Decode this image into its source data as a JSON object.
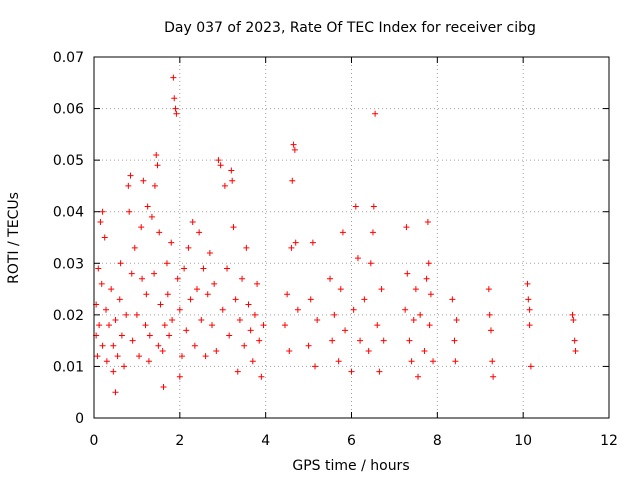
{
  "chart_data": {
    "type": "scatter",
    "title": "Day 037 of 2023, Rate Of TEC Index for receiver cibg",
    "xlabel": "GPS time / hours",
    "ylabel": "ROTI / TECUs",
    "xlim": [
      0,
      12
    ],
    "ylim": [
      0,
      0.07
    ],
    "xticks": [
      0,
      2,
      4,
      6,
      8,
      10,
      12
    ],
    "yticks": [
      0,
      0.01,
      0.02,
      0.03,
      0.04,
      0.05,
      0.06,
      0.07
    ],
    "ytick_labels": [
      "0",
      "0.01",
      "0.02",
      "0.03",
      "0.04",
      "0.05",
      "0.06",
      "0.07"
    ],
    "grid": true,
    "marker": "+",
    "color": "#ff0000",
    "series": [
      {
        "name": "ROTI",
        "points": [
          [
            0.05,
            0.016
          ],
          [
            0.05,
            0.022
          ],
          [
            0.08,
            0.012
          ],
          [
            0.1,
            0.029
          ],
          [
            0.12,
            0.018
          ],
          [
            0.15,
            0.038
          ],
          [
            0.18,
            0.026
          ],
          [
            0.2,
            0.014
          ],
          [
            0.2,
            0.04
          ],
          [
            0.25,
            0.035
          ],
          [
            0.28,
            0.021
          ],
          [
            0.3,
            0.011
          ],
          [
            0.35,
            0.018
          ],
          [
            0.4,
            0.025
          ],
          [
            0.45,
            0.009
          ],
          [
            0.45,
            0.014
          ],
          [
            0.5,
            0.005
          ],
          [
            0.5,
            0.019
          ],
          [
            0.55,
            0.012
          ],
          [
            0.6,
            0.023
          ],
          [
            0.62,
            0.03
          ],
          [
            0.65,
            0.016
          ],
          [
            0.7,
            0.01
          ],
          [
            0.75,
            0.02
          ],
          [
            0.8,
            0.045
          ],
          [
            0.82,
            0.04
          ],
          [
            0.85,
            0.047
          ],
          [
            0.88,
            0.028
          ],
          [
            0.9,
            0.015
          ],
          [
            0.95,
            0.033
          ],
          [
            1.0,
            0.02
          ],
          [
            1.05,
            0.012
          ],
          [
            1.1,
            0.037
          ],
          [
            1.12,
            0.027
          ],
          [
            1.15,
            0.046
          ],
          [
            1.2,
            0.018
          ],
          [
            1.22,
            0.024
          ],
          [
            1.25,
            0.041
          ],
          [
            1.28,
            0.011
          ],
          [
            1.3,
            0.016
          ],
          [
            1.35,
            0.039
          ],
          [
            1.4,
            0.028
          ],
          [
            1.42,
            0.045
          ],
          [
            1.45,
            0.051
          ],
          [
            1.48,
            0.049
          ],
          [
            1.5,
            0.014
          ],
          [
            1.52,
            0.036
          ],
          [
            1.55,
            0.022
          ],
          [
            1.6,
            0.013
          ],
          [
            1.62,
            0.006
          ],
          [
            1.65,
            0.018
          ],
          [
            1.7,
            0.03
          ],
          [
            1.72,
            0.024
          ],
          [
            1.75,
            0.016
          ],
          [
            1.8,
            0.034
          ],
          [
            1.82,
            0.019
          ],
          [
            1.85,
            0.066
          ],
          [
            1.87,
            0.062
          ],
          [
            1.9,
            0.06
          ],
          [
            1.92,
            0.059
          ],
          [
            1.95,
            0.027
          ],
          [
            2.0,
            0.008
          ],
          [
            2.0,
            0.021
          ],
          [
            2.05,
            0.012
          ],
          [
            2.1,
            0.029
          ],
          [
            2.15,
            0.017
          ],
          [
            2.2,
            0.033
          ],
          [
            2.25,
            0.023
          ],
          [
            2.3,
            0.038
          ],
          [
            2.35,
            0.014
          ],
          [
            2.4,
            0.025
          ],
          [
            2.45,
            0.036
          ],
          [
            2.5,
            0.019
          ],
          [
            2.55,
            0.029
          ],
          [
            2.6,
            0.012
          ],
          [
            2.65,
            0.024
          ],
          [
            2.7,
            0.032
          ],
          [
            2.75,
            0.018
          ],
          [
            2.8,
            0.026
          ],
          [
            2.85,
            0.013
          ],
          [
            2.9,
            0.05
          ],
          [
            2.95,
            0.049
          ],
          [
            3.0,
            0.021
          ],
          [
            3.05,
            0.045
          ],
          [
            3.1,
            0.029
          ],
          [
            3.15,
            0.016
          ],
          [
            3.2,
            0.048
          ],
          [
            3.22,
            0.046
          ],
          [
            3.25,
            0.037
          ],
          [
            3.3,
            0.023
          ],
          [
            3.35,
            0.009
          ],
          [
            3.4,
            0.019
          ],
          [
            3.45,
            0.027
          ],
          [
            3.5,
            0.014
          ],
          [
            3.55,
            0.033
          ],
          [
            3.6,
            0.022
          ],
          [
            3.65,
            0.017
          ],
          [
            3.7,
            0.011
          ],
          [
            3.75,
            0.02
          ],
          [
            3.8,
            0.026
          ],
          [
            3.85,
            0.015
          ],
          [
            3.9,
            0.008
          ],
          [
            3.95,
            0.018
          ],
          [
            4.45,
            0.018
          ],
          [
            4.5,
            0.024
          ],
          [
            4.55,
            0.013
          ],
          [
            4.6,
            0.033
          ],
          [
            4.62,
            0.046
          ],
          [
            4.65,
            0.053
          ],
          [
            4.68,
            0.052
          ],
          [
            4.7,
            0.034
          ],
          [
            4.75,
            0.021
          ],
          [
            5.0,
            0.014
          ],
          [
            5.05,
            0.023
          ],
          [
            5.1,
            0.034
          ],
          [
            5.15,
            0.01
          ],
          [
            5.2,
            0.019
          ],
          [
            5.5,
            0.027
          ],
          [
            5.55,
            0.015
          ],
          [
            5.6,
            0.02
          ],
          [
            5.7,
            0.011
          ],
          [
            5.75,
            0.025
          ],
          [
            5.8,
            0.036
          ],
          [
            5.85,
            0.017
          ],
          [
            6.0,
            0.009
          ],
          [
            6.05,
            0.021
          ],
          [
            6.1,
            0.041
          ],
          [
            6.15,
            0.031
          ],
          [
            6.2,
            0.015
          ],
          [
            6.3,
            0.023
          ],
          [
            6.4,
            0.013
          ],
          [
            6.45,
            0.03
          ],
          [
            6.5,
            0.036
          ],
          [
            6.52,
            0.041
          ],
          [
            6.55,
            0.059
          ],
          [
            6.6,
            0.018
          ],
          [
            6.65,
            0.009
          ],
          [
            6.7,
            0.025
          ],
          [
            6.75,
            0.015
          ],
          [
            7.25,
            0.021
          ],
          [
            7.28,
            0.037
          ],
          [
            7.3,
            0.028
          ],
          [
            7.35,
            0.015
          ],
          [
            7.4,
            0.011
          ],
          [
            7.45,
            0.019
          ],
          [
            7.5,
            0.025
          ],
          [
            7.55,
            0.008
          ],
          [
            7.6,
            0.02
          ],
          [
            7.7,
            0.013
          ],
          [
            7.75,
            0.027
          ],
          [
            7.78,
            0.038
          ],
          [
            7.8,
            0.03
          ],
          [
            7.82,
            0.018
          ],
          [
            7.85,
            0.024
          ],
          [
            7.9,
            0.011
          ],
          [
            8.35,
            0.023
          ],
          [
            8.4,
            0.015
          ],
          [
            8.42,
            0.011
          ],
          [
            8.45,
            0.019
          ],
          [
            9.2,
            0.025
          ],
          [
            9.22,
            0.02
          ],
          [
            9.25,
            0.017
          ],
          [
            9.28,
            0.011
          ],
          [
            9.3,
            0.008
          ],
          [
            10.1,
            0.026
          ],
          [
            10.12,
            0.023
          ],
          [
            10.15,
            0.021
          ],
          [
            10.15,
            0.018
          ],
          [
            10.18,
            0.01
          ],
          [
            11.15,
            0.02
          ],
          [
            11.17,
            0.019
          ],
          [
            11.2,
            0.015
          ],
          [
            11.22,
            0.013
          ]
        ]
      }
    ]
  }
}
